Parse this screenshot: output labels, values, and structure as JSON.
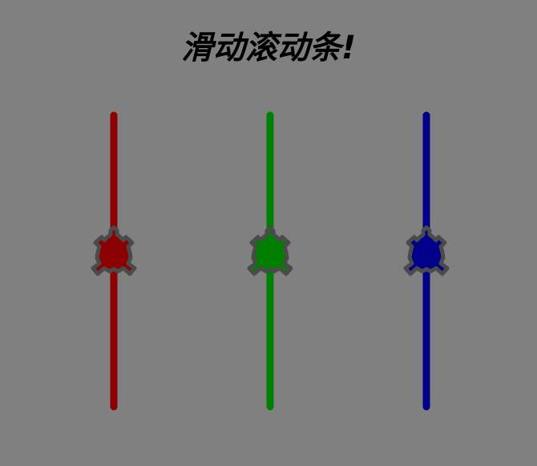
{
  "title": "滑动滚动条!",
  "sliders": [
    {
      "color": "#8b0000",
      "value": 0.5
    },
    {
      "color": "#008000",
      "value": 0.5
    },
    {
      "color": "#00008b",
      "value": 0.5
    }
  ],
  "turtle": {
    "outline_color": "#4a4a4a"
  }
}
